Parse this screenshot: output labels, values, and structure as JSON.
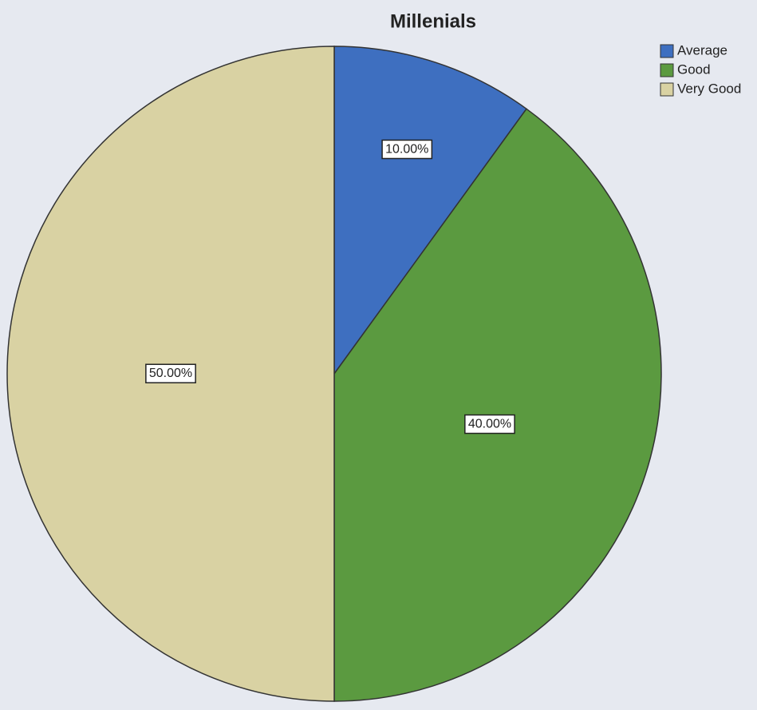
{
  "chart_data": {
    "type": "pie",
    "title": "Millenials",
    "categories": [
      "Average",
      "Good",
      "Very Good"
    ],
    "values": [
      10,
      40,
      50
    ],
    "value_labels": [
      "10.00%",
      "40.00%",
      "50.00%"
    ],
    "colors": [
      "#3e6fc0",
      "#5b9a40",
      "#d9d2a3"
    ],
    "legend": "top-right"
  }
}
